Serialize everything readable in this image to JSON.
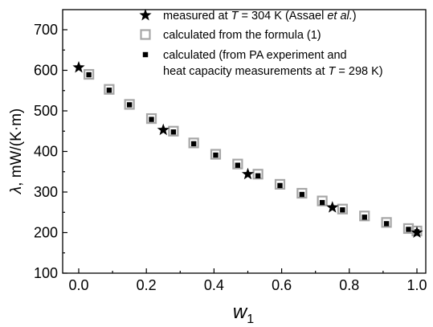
{
  "chart_data": {
    "type": "scatter",
    "title": "",
    "xlabel": "w",
    "xlabel_sub": "1",
    "ylabel_symbol": "λ",
    "ylabel_unit": ", mW/(K·m)",
    "xlim": [
      0,
      1
    ],
    "ylim": [
      100,
      700
    ],
    "xticks": [
      0.0,
      0.2,
      0.4,
      0.6,
      0.8,
      1.0
    ],
    "xtick_labels": [
      "0.0",
      "0.2",
      "0.4",
      "0.6",
      "0.8",
      "1.0"
    ],
    "yticks": [
      100,
      200,
      300,
      400,
      500,
      600,
      700
    ],
    "ytick_labels": [
      "100",
      "200",
      "300",
      "400",
      "500",
      "600",
      "700"
    ],
    "grid": false,
    "legend_position": "top-right",
    "series": [
      {
        "marker": "star",
        "color": "#000000",
        "legend_parts": [
          {
            "t": "measured at "
          },
          {
            "t": "T",
            "i": true
          },
          {
            "t": " = 304 K (Assael "
          },
          {
            "t": "et al.",
            "i": true
          },
          {
            "t": ")"
          }
        ],
        "points": [
          [
            0.0,
            607
          ],
          [
            0.25,
            453
          ],
          [
            0.5,
            344
          ],
          [
            0.75,
            262
          ],
          [
            1.0,
            200
          ]
        ]
      },
      {
        "marker": "open-square",
        "color": "#a6a6a6",
        "legend_parts": [
          {
            "t": "calculated from the formula (1)"
          }
        ],
        "points": [
          [
            0.03,
            590
          ],
          [
            0.09,
            553
          ],
          [
            0.15,
            516
          ],
          [
            0.215,
            481
          ],
          [
            0.28,
            450
          ],
          [
            0.34,
            421
          ],
          [
            0.405,
            393
          ],
          [
            0.47,
            369
          ],
          [
            0.53,
            344
          ],
          [
            0.595,
            319
          ],
          [
            0.66,
            297
          ],
          [
            0.72,
            278
          ],
          [
            0.78,
            258
          ],
          [
            0.845,
            241
          ],
          [
            0.91,
            225
          ],
          [
            0.975,
            210
          ],
          [
            1.0,
            204
          ]
        ]
      },
      {
        "marker": "filled-square",
        "color": "#000000",
        "legend_parts": [
          {
            "t": "calculated (from PA experiment and"
          }
        ],
        "legend_parts_line2": [
          {
            "t": "heat capacity measurements at "
          },
          {
            "t": "T",
            "i": true
          },
          {
            "t": " = 298 K)"
          }
        ],
        "points": [
          [
            0.03,
            589
          ],
          [
            0.09,
            551
          ],
          [
            0.15,
            515
          ],
          [
            0.215,
            479
          ],
          [
            0.28,
            448
          ],
          [
            0.34,
            419
          ],
          [
            0.405,
            391
          ],
          [
            0.47,
            366
          ],
          [
            0.53,
            340
          ],
          [
            0.595,
            316
          ],
          [
            0.66,
            294
          ],
          [
            0.72,
            274
          ],
          [
            0.78,
            256
          ],
          [
            0.845,
            238
          ],
          [
            0.91,
            222
          ],
          [
            0.975,
            208
          ],
          [
            1.0,
            202
          ]
        ]
      }
    ]
  }
}
